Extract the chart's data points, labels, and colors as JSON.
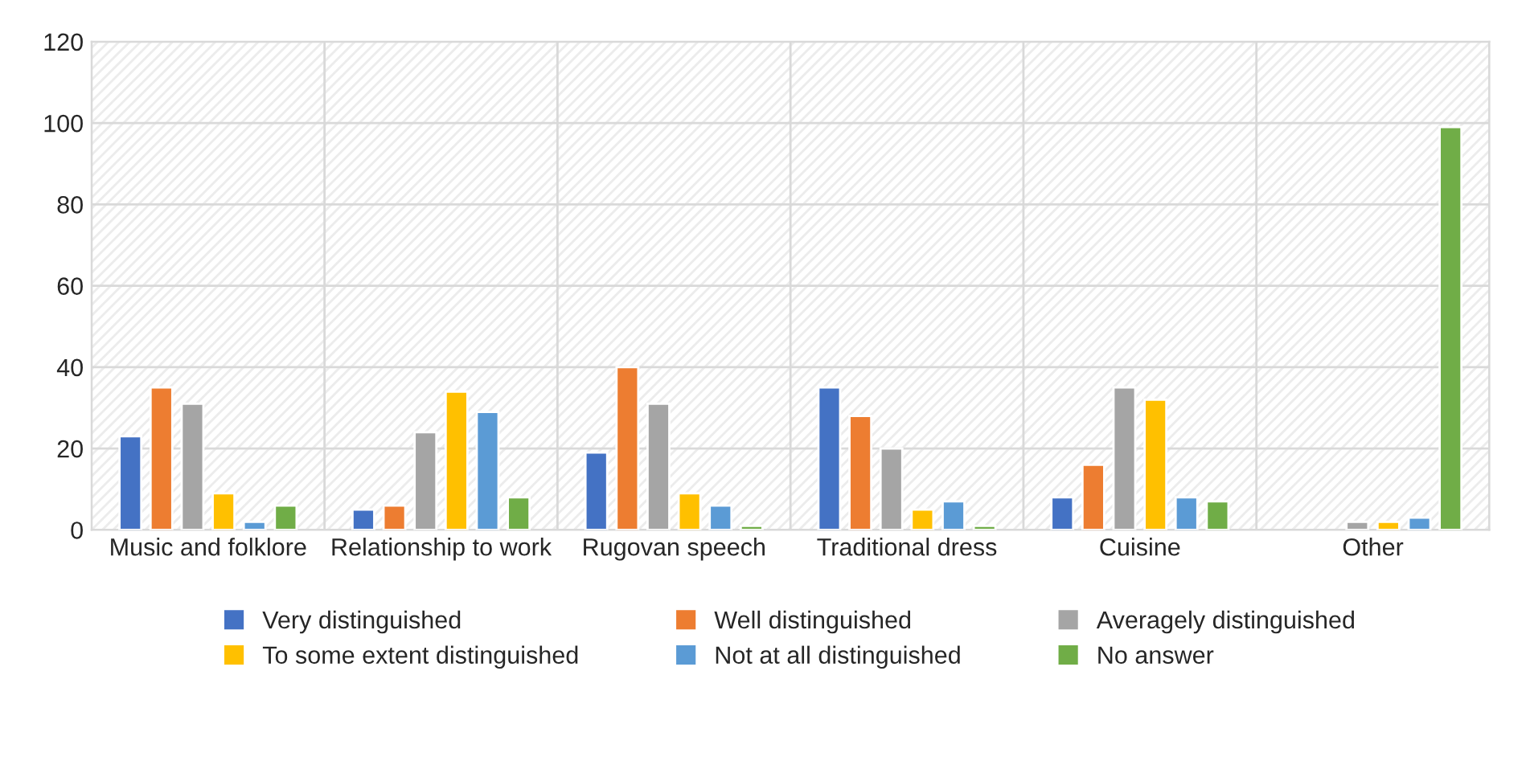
{
  "chart_data": {
    "type": "bar",
    "categories": [
      "Music and folklore",
      "Relationship to work",
      "Rugovan speech",
      "Traditional dress",
      "Cuisine",
      "Other"
    ],
    "series": [
      {
        "name": "Very distinguished",
        "color": "#4472c4",
        "values": [
          23,
          5,
          19,
          35,
          8,
          null
        ]
      },
      {
        "name": "Well distinguished",
        "color": "#ed7d31",
        "values": [
          35,
          6,
          40,
          28,
          16,
          null
        ]
      },
      {
        "name": "Averagely distinguished",
        "color": "#a5a5a5",
        "values": [
          31,
          24,
          31,
          20,
          35,
          2
        ]
      },
      {
        "name": "To some extent distinguished",
        "color": "#ffc000",
        "values": [
          9,
          34,
          9,
          5,
          32,
          2
        ]
      },
      {
        "name": "Not at all distinguished",
        "color": "#5b9bd5",
        "values": [
          2,
          29,
          6,
          7,
          8,
          3
        ]
      },
      {
        "name": "No answer",
        "color": "#70ad47",
        "values": [
          6,
          8,
          1,
          1,
          7,
          99
        ]
      }
    ],
    "ylim": [
      0,
      120
    ],
    "yticks": [
      0,
      20,
      40,
      60,
      80,
      100,
      120
    ],
    "grid": true,
    "legend": "bottom"
  }
}
